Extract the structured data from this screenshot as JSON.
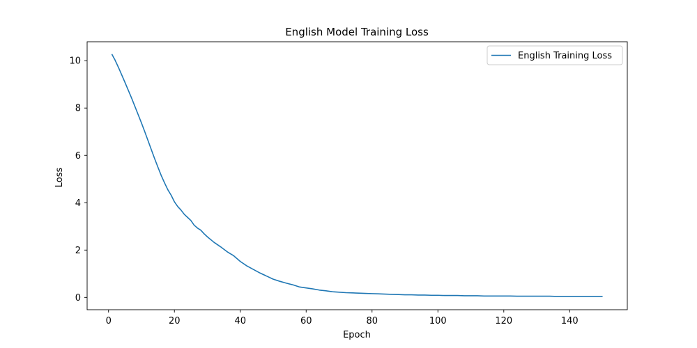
{
  "chart_data": {
    "type": "line",
    "title": "English Model Training Loss",
    "xlabel": "Epoch",
    "ylabel": "Loss",
    "xlim": [
      -6.5,
      157.5
    ],
    "ylim": [
      -0.52,
      10.8
    ],
    "xticks": [
      0,
      20,
      40,
      60,
      80,
      100,
      120,
      140
    ],
    "yticks": [
      0,
      2,
      4,
      6,
      8,
      10
    ],
    "grid": false,
    "legend_position": "top-right",
    "series": [
      {
        "name": "English Training Loss",
        "color": "#1f77b4",
        "x": [
          1,
          2,
          3,
          4,
          5,
          6,
          7,
          8,
          9,
          10,
          11,
          12,
          13,
          14,
          15,
          16,
          17,
          18,
          19,
          20,
          21,
          22,
          23,
          24,
          25,
          26,
          27,
          28,
          29,
          30,
          32,
          34,
          36,
          38,
          40,
          42,
          44,
          46,
          48,
          50,
          52,
          54,
          56,
          58,
          60,
          62,
          64,
          66,
          68,
          70,
          72,
          74,
          76,
          78,
          80,
          82,
          84,
          86,
          88,
          90,
          92,
          94,
          96,
          98,
          100,
          102,
          104,
          106,
          108,
          110,
          112,
          114,
          116,
          118,
          120,
          122,
          124,
          126,
          128,
          130,
          132,
          134,
          136,
          138,
          140,
          142,
          144,
          146,
          148,
          150
        ],
        "y": [
          10.28,
          10.02,
          9.72,
          9.4,
          9.08,
          8.75,
          8.42,
          8.07,
          7.72,
          7.37,
          7.0,
          6.62,
          6.24,
          5.86,
          5.5,
          5.15,
          4.84,
          4.55,
          4.32,
          4.04,
          3.84,
          3.69,
          3.51,
          3.38,
          3.25,
          3.05,
          2.93,
          2.84,
          2.69,
          2.56,
          2.33,
          2.14,
          1.93,
          1.76,
          1.52,
          1.33,
          1.18,
          1.03,
          0.9,
          0.77,
          0.68,
          0.6,
          0.53,
          0.44,
          0.4,
          0.36,
          0.31,
          0.28,
          0.24,
          0.22,
          0.2,
          0.19,
          0.18,
          0.17,
          0.16,
          0.15,
          0.14,
          0.13,
          0.12,
          0.11,
          0.11,
          0.1,
          0.1,
          0.09,
          0.09,
          0.08,
          0.08,
          0.08,
          0.07,
          0.07,
          0.07,
          0.06,
          0.06,
          0.06,
          0.06,
          0.06,
          0.05,
          0.05,
          0.05,
          0.05,
          0.05,
          0.05,
          0.04,
          0.04,
          0.04,
          0.04,
          0.04,
          0.04,
          0.04,
          0.04
        ]
      }
    ]
  }
}
